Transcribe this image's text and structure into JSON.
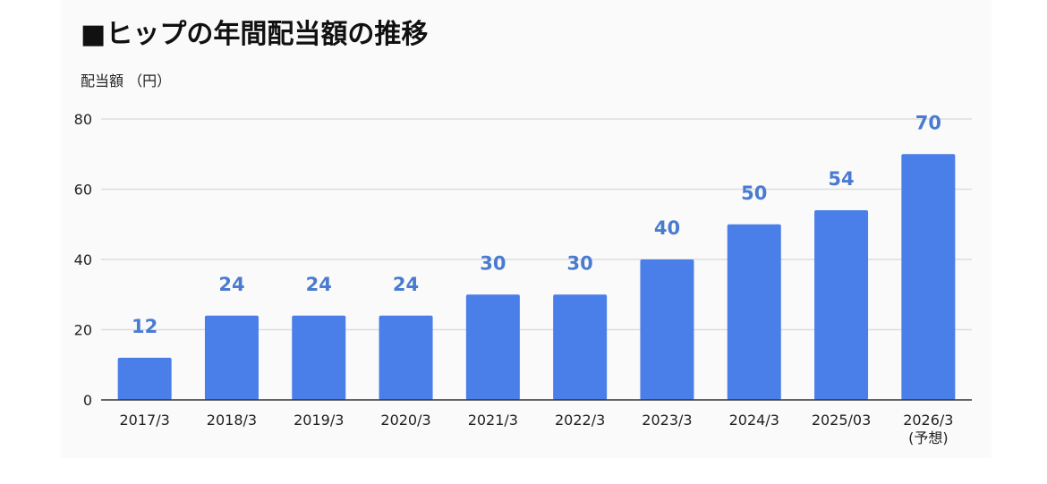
{
  "title": "■ヒップの年間配当額の推移",
  "chart_data": {
    "type": "bar",
    "ylabel": "配当額 （円）",
    "xlabel": "",
    "categories": [
      "2017/3",
      "2018/3",
      "2019/3",
      "2020/3",
      "2021/3",
      "2022/3",
      "2023/3",
      "2024/3",
      "2025/03",
      "2026/3"
    ],
    "category_sublabels": [
      "",
      "",
      "",
      "",
      "",
      "",
      "",
      "",
      "",
      "(予想)"
    ],
    "values": [
      12,
      24,
      24,
      24,
      30,
      30,
      40,
      50,
      54,
      70
    ],
    "data_labels": [
      "12",
      "24",
      "24",
      "24",
      "30",
      "30",
      "40",
      "50",
      "54",
      "70"
    ],
    "ylim": [
      0,
      80
    ],
    "yticks": [
      "0",
      "20",
      "40",
      "60",
      "80"
    ],
    "grid": true,
    "legend": "none",
    "colors": {
      "bar": "#4a7ee8",
      "data_label": "#4a7bd0",
      "grid": "#dddddd",
      "axis": "#333333",
      "text": "#222222",
      "panel": "#fafafa"
    }
  }
}
